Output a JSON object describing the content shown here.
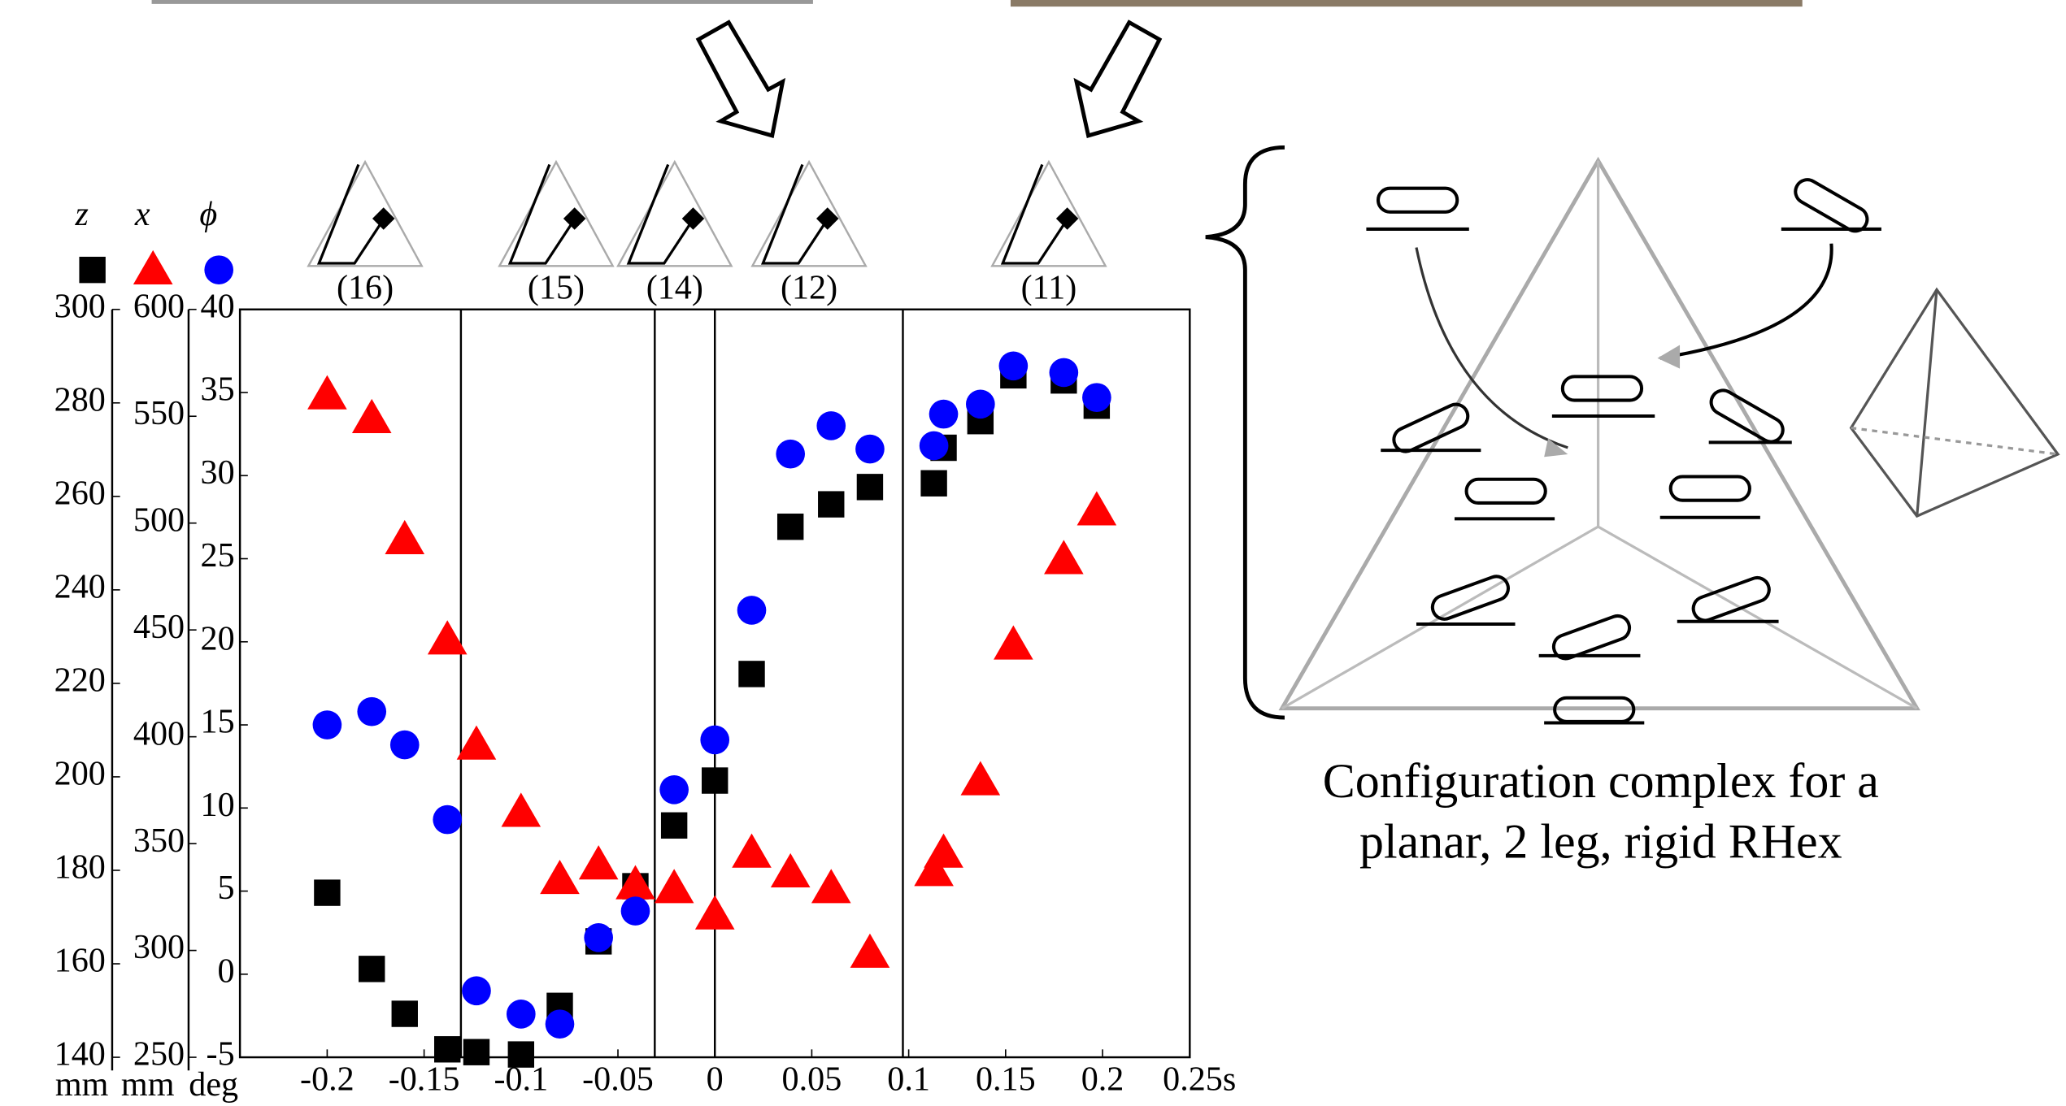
{
  "chart_data": {
    "type": "scatter",
    "x": [
      -0.2,
      -0.177,
      -0.16,
      -0.138,
      -0.123,
      -0.1,
      -0.08,
      -0.06,
      -0.041,
      -0.021,
      0,
      0.019,
      0.039,
      0.06,
      0.08,
      0.113,
      0.118,
      0.137,
      0.154,
      0.18,
      0.197
    ],
    "xlim": [
      -0.245,
      0.245
    ],
    "xticks": [
      -0.2,
      -0.15,
      -0.1,
      -0.05,
      0,
      0.05,
      0.1,
      0.15,
      0.2,
      {
        "value": 0.25,
        "label": "0.25s"
      }
    ],
    "series": [
      {
        "name": "z",
        "unit": "mm",
        "marker": "square",
        "color": "#000000",
        "ylim": [
          140,
          300
        ],
        "yticks": [
          140,
          160,
          180,
          200,
          220,
          240,
          260,
          280,
          300
        ],
        "values": [
          175.2,
          158.9,
          149.3,
          141.7,
          141.1,
          140.6,
          151.0,
          164.8,
          176.6,
          189.6,
          199.2,
          222.0,
          253.5,
          258.3,
          262.0,
          262.8,
          270.4,
          276.1,
          285.9,
          284.8,
          279.4
        ]
      },
      {
        "name": "x",
        "unit": "mm",
        "marker": "triangle",
        "color": "#ff0000",
        "ylim": [
          250,
          600
        ],
        "yticks": [
          250,
          300,
          350,
          400,
          450,
          500,
          550,
          600
        ],
        "values": [
          560,
          548.9,
          492.2,
          445.3,
          396.1,
          364.6,
          333.2,
          340,
          330.7,
          328.9,
          316.6,
          345.5,
          336.3,
          328.9,
          298.7,
          336.9,
          345.5,
          379.4,
          442.9,
          482.9,
          505.7
        ]
      },
      {
        "name": "ϕ",
        "unit": "deg",
        "marker": "circle",
        "color": "#0000ff",
        "ylim": [
          -5,
          40
        ],
        "yticks": [
          -5,
          0,
          5,
          10,
          15,
          20,
          25,
          30,
          35,
          40
        ],
        "values": [
          15.0,
          15.8,
          13.8,
          9.3,
          -1,
          -2.4,
          -3.0,
          2.2,
          3.8,
          11.1,
          14.1,
          21.9,
          31.3,
          33.0,
          31.6,
          31.8,
          33.7,
          34.3,
          36.6,
          36.2,
          34.7
        ]
      }
    ],
    "phase_boundaries": [
      -0.131,
      -0.031,
      0,
      0.097
    ],
    "phase_labels": [
      "(16)",
      "(15)",
      "(14)",
      "(12)",
      "(11)"
    ]
  },
  "caption": [
    "Configuration complex for a",
    "planar, 2 leg, rigid RHex"
  ]
}
